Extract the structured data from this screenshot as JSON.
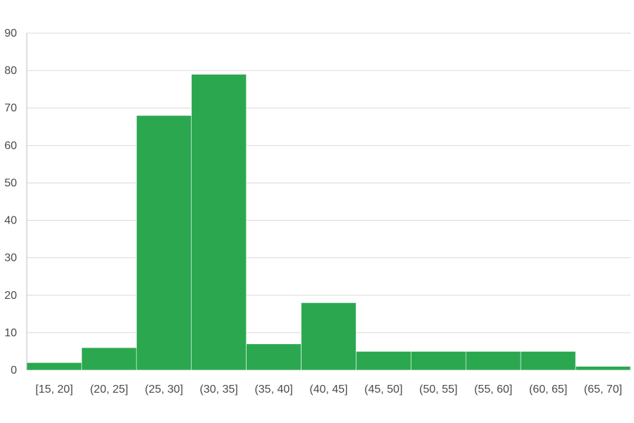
{
  "chart_data": {
    "type": "bar",
    "categories": [
      "[15, 20]",
      "(20, 25]",
      "(25, 30]",
      "(30, 35]",
      "(35, 40]",
      "(40, 45]",
      "(45, 50]",
      "(50, 55]",
      "(55, 60]",
      "(60, 65]",
      "(65, 70]"
    ],
    "values": [
      2,
      6,
      68,
      79,
      7,
      18,
      5,
      5,
      5,
      5,
      1
    ],
    "title": "",
    "xlabel": "",
    "ylabel": "",
    "ylim": [
      0,
      90
    ],
    "yticks": [
      "0",
      "10",
      "20",
      "30",
      "40",
      "50",
      "60",
      "70",
      "80",
      "90"
    ],
    "grid": true,
    "legend": "none",
    "colors": {
      "bar": "#2ba84f",
      "grid": "#d9d9d9",
      "text": "#4a4a4a"
    }
  }
}
